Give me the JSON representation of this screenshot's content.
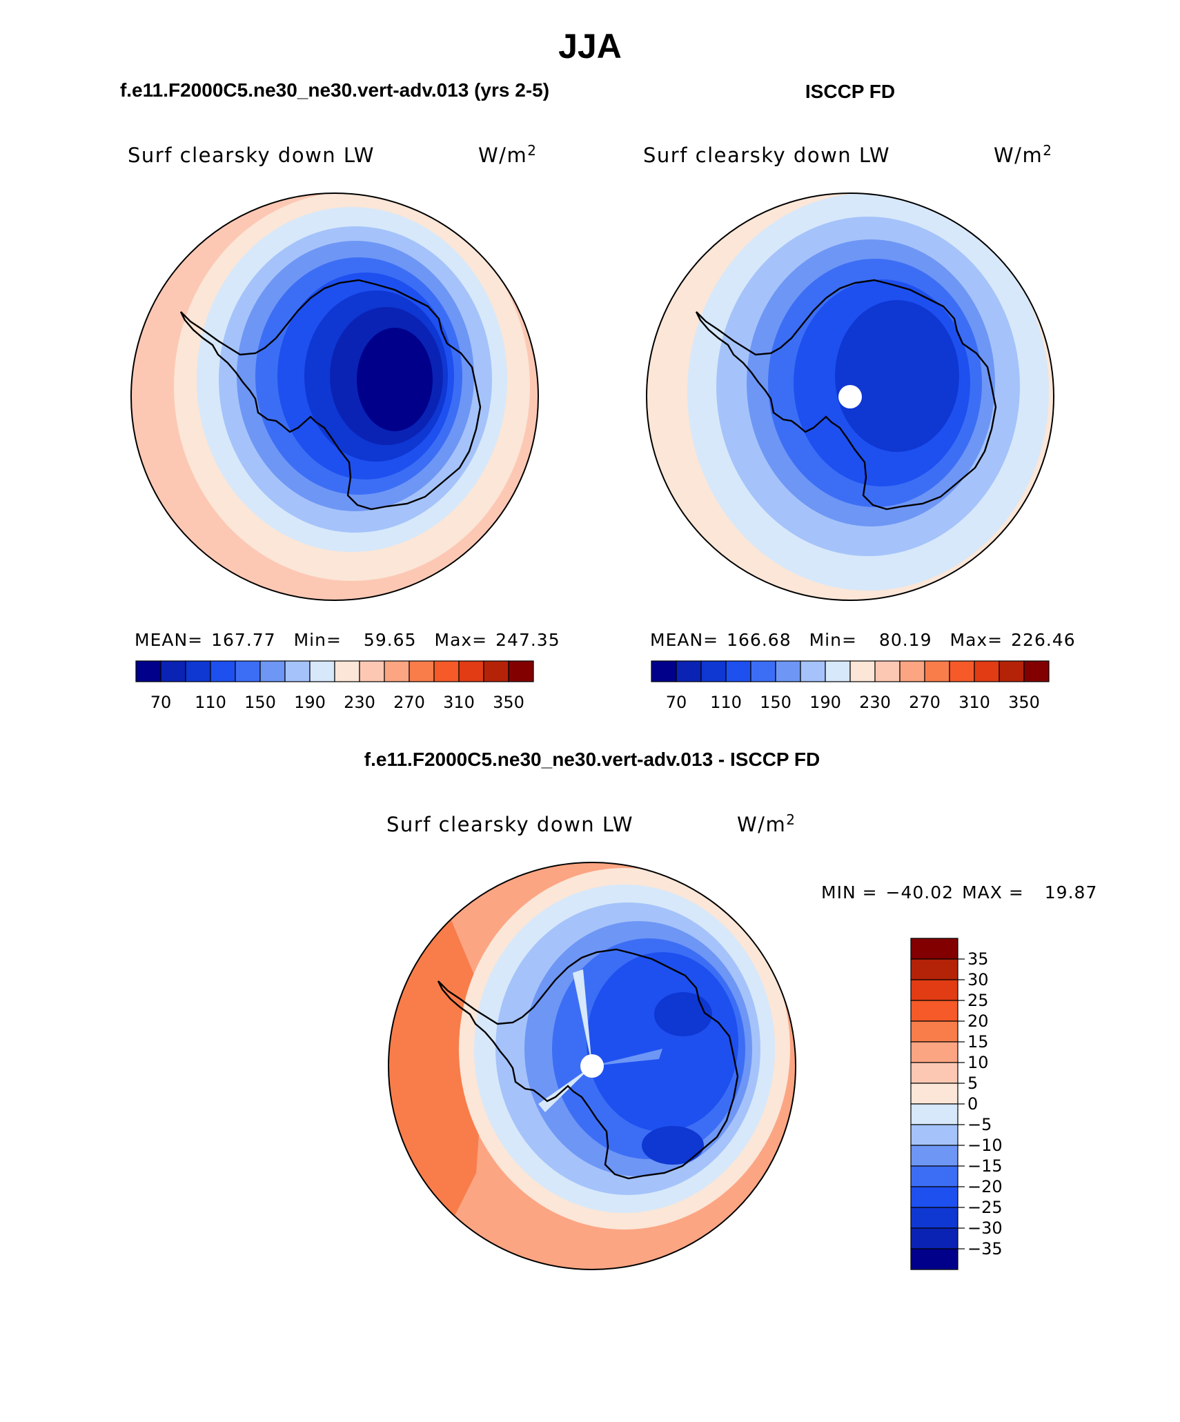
{
  "figure": {
    "title": "JJA",
    "unit_base": "W/m",
    "unit_sup": "2"
  },
  "panels": [
    {
      "id": "model",
      "header": "f.e11.F2000C5.ne30_ne30.vert-adv.013 (yrs 2-5)",
      "variable": "Surf clearsky down LW",
      "stats": {
        "mean_label": "MEAN=",
        "mean": "167.77",
        "min_label": "Min=",
        "min": "59.65",
        "max_label": "Max=",
        "max": "247.35"
      }
    },
    {
      "id": "obs",
      "header": "ISCCP FD",
      "variable": "Surf clearsky down LW",
      "stats": {
        "mean_label": "MEAN=",
        "mean": "166.68",
        "min_label": "Min=",
        "min": "80.19",
        "max_label": "Max=",
        "max": "226.46"
      }
    },
    {
      "id": "diff",
      "header": "f.e11.F2000C5.ne30_ne30.vert-adv.013 - ISCCP FD",
      "variable": "Surf clearsky down LW",
      "stats": {
        "min_label": "MIN =",
        "min": "−40.02",
        "max_label": "MAX =",
        "max": "19.87"
      }
    }
  ],
  "colorbars": {
    "abs": {
      "colors": [
        "#00008b",
        "#0a23b4",
        "#0f37d2",
        "#1e50f0",
        "#3c6ef5",
        "#6e96f5",
        "#a5c3fa",
        "#d7e8fa",
        "#fbe6d7",
        "#fcc8b4",
        "#fca583",
        "#f87d4b",
        "#f55a28",
        "#e13c14",
        "#b42308",
        "#820000"
      ],
      "tick_labels": [
        "70",
        "110",
        "150",
        "190",
        "230",
        "270",
        "310",
        "350"
      ]
    },
    "diff": {
      "colors": [
        "#00008b",
        "#0a23b4",
        "#0f37d2",
        "#1e50f0",
        "#3c6ef5",
        "#6e96f5",
        "#a5c3fa",
        "#d7e8fa",
        "#fbe6d7",
        "#fcc8b4",
        "#fca583",
        "#f87d4b",
        "#f55a28",
        "#e13c14",
        "#b42308",
        "#820000"
      ],
      "tick_labels": [
        "−35",
        "−30",
        "−25",
        "−20",
        "−15",
        "−10",
        "−5",
        "0",
        "5",
        "10",
        "15",
        "20",
        "25",
        "30",
        "35"
      ]
    }
  },
  "map_style": {
    "coast_color": "#000000",
    "pole_mask_color": "#ffffff"
  }
}
